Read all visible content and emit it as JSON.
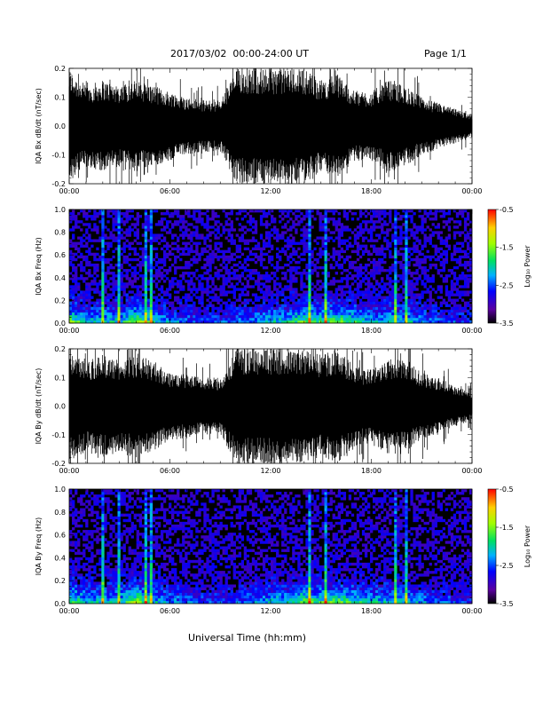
{
  "header": {
    "title": "2017/03/02  00:00-24:00 UT",
    "page": "Page 1/1"
  },
  "footer": {
    "xlabel": "Universal Time (hh:mm)"
  },
  "chart_data": [
    {
      "type": "area",
      "ylabel": "IQA Bx dB/dt (nT/sec)",
      "ylim": [
        -0.2,
        0.2
      ],
      "yticks": [
        "-0.2",
        "-0.1",
        "0.0",
        "0.1",
        "0.2"
      ],
      "x_tick_labels": [
        "00:00",
        "06:00",
        "12:00",
        "18:00",
        "00:00"
      ],
      "x_hours": [
        0,
        1,
        2,
        3,
        4,
        5,
        6,
        7,
        8,
        9,
        10,
        11,
        12,
        13,
        14,
        15,
        16,
        17,
        18,
        19,
        20,
        21,
        22,
        23,
        24
      ],
      "amplitude_envelope": [
        0.2,
        0.14,
        0.16,
        0.14,
        0.16,
        0.14,
        0.12,
        0.1,
        0.09,
        0.09,
        0.2,
        0.2,
        0.2,
        0.2,
        0.2,
        0.16,
        0.18,
        0.12,
        0.12,
        0.16,
        0.14,
        0.1,
        0.08,
        0.06,
        0.04
      ]
    },
    {
      "type": "heatmap",
      "ylabel": "IQA Bx Freq (Hz)",
      "ylim": [
        0,
        1.0
      ],
      "yticks": [
        "0.0",
        "0.2",
        "0.4",
        "0.6",
        "0.8",
        "1.0"
      ],
      "x_tick_labels": [
        "00:00",
        "06:00",
        "12:00",
        "18:00",
        "00:00"
      ],
      "colorbar": {
        "label": "Log₁₀ Power",
        "range": [
          -3.5,
          -0.5
        ],
        "ticks": [
          "-0.5",
          "-1.5",
          "-2.5",
          "-3.5"
        ]
      },
      "activity_profile": [
        0.3,
        0.2,
        0.2,
        0.2,
        0.35,
        0.2,
        0.15,
        0.12,
        0.1,
        0.1,
        0.12,
        0.15,
        0.2,
        0.2,
        0.3,
        0.25,
        0.3,
        0.25,
        0.2,
        0.2,
        0.2,
        0.15,
        0.12,
        0.1,
        0.08
      ]
    },
    {
      "type": "area",
      "ylabel": "IQA By dB/dt (nT/sec)",
      "ylim": [
        -0.2,
        0.2
      ],
      "yticks": [
        "-0.2",
        "-0.1",
        "0.0",
        "0.1",
        "0.2"
      ],
      "x_tick_labels": [
        "00:00",
        "06:00",
        "12:00",
        "18:00",
        "00:00"
      ],
      "x_hours": [
        0,
        1,
        2,
        3,
        4,
        5,
        6,
        7,
        8,
        9,
        10,
        11,
        12,
        13,
        14,
        15,
        16,
        17,
        18,
        19,
        20,
        21,
        22,
        23,
        24
      ],
      "amplitude_envelope": [
        0.2,
        0.16,
        0.18,
        0.16,
        0.18,
        0.16,
        0.12,
        0.11,
        0.1,
        0.1,
        0.2,
        0.2,
        0.2,
        0.2,
        0.2,
        0.18,
        0.2,
        0.14,
        0.13,
        0.17,
        0.16,
        0.12,
        0.1,
        0.07,
        0.05
      ]
    },
    {
      "type": "heatmap",
      "ylabel": "IQA By Freq (Hz)",
      "ylim": [
        0,
        1.0
      ],
      "yticks": [
        "0.0",
        "0.2",
        "0.4",
        "0.6",
        "0.8",
        "1.0"
      ],
      "x_tick_labels": [
        "00:00",
        "06:00",
        "12:00",
        "18:00",
        "00:00"
      ],
      "colorbar": {
        "label": "Log₁₀ Power",
        "range": [
          -3.5,
          -0.5
        ],
        "ticks": [
          "-0.5",
          "-1.5",
          "-2.5",
          "-3.5"
        ]
      },
      "activity_profile": [
        0.3,
        0.2,
        0.2,
        0.2,
        0.35,
        0.2,
        0.15,
        0.12,
        0.1,
        0.1,
        0.12,
        0.15,
        0.2,
        0.2,
        0.3,
        0.25,
        0.3,
        0.25,
        0.2,
        0.2,
        0.2,
        0.15,
        0.12,
        0.1,
        0.08
      ]
    }
  ]
}
